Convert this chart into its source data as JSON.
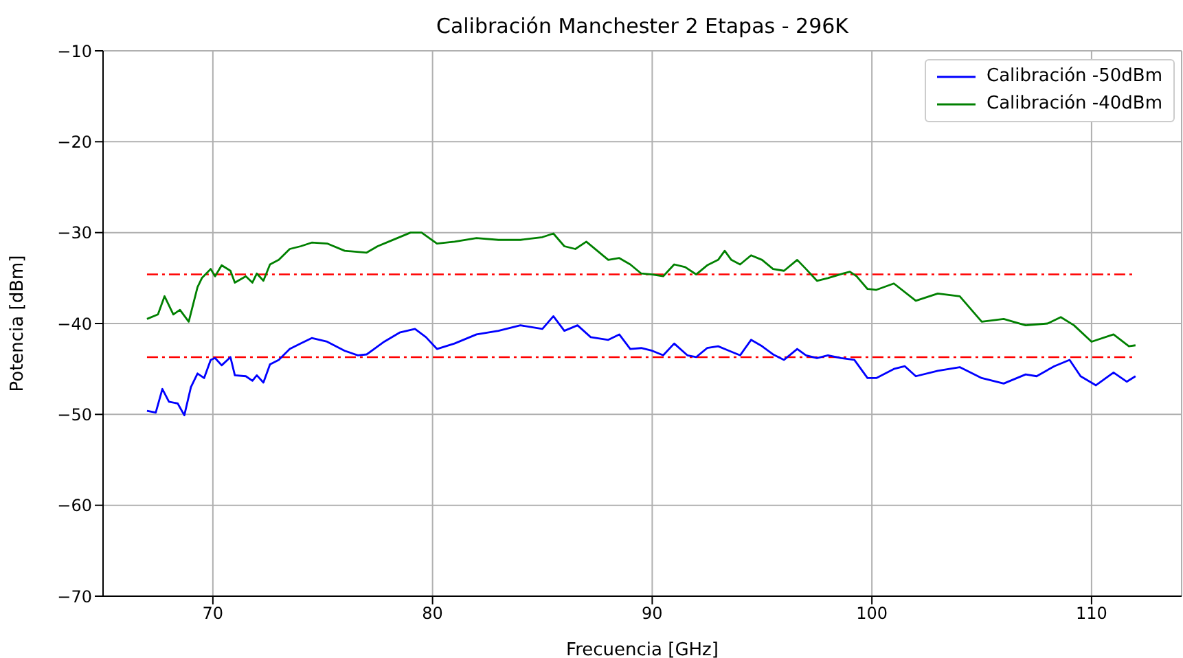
{
  "chart_data": {
    "type": "line",
    "title": "Calibración Manchester 2 Etapas - 296K",
    "xlabel": "Frecuencia [GHz]",
    "ylabel": "Potencia [dBm]",
    "xlim": [
      65,
      114.1
    ],
    "xticks": [
      70,
      80,
      90,
      100,
      110
    ],
    "ylim": [
      -70,
      -10
    ],
    "yticks": [
      -70,
      -60,
      -50,
      -40,
      -30,
      -20,
      -10
    ],
    "grid": true,
    "legend": "top right",
    "line_style": "solid",
    "marker": "none",
    "series": [
      {
        "name": "Calibración -50dBm",
        "color": "#0000ff",
        "x": [
          67.0,
          67.4,
          67.7,
          68.0,
          68.4,
          68.7,
          69.0,
          69.3,
          69.6,
          69.9,
          70.1,
          70.4,
          70.8,
          71.0,
          71.5,
          71.8,
          72.0,
          72.3,
          72.6,
          73.0,
          73.5,
          74.0,
          74.5,
          75.2,
          76.0,
          76.6,
          77.0,
          77.8,
          78.5,
          79.2,
          79.7,
          80.2,
          81.0,
          82.0,
          83.0,
          84.0,
          85.0,
          85.5,
          86.0,
          86.6,
          87.2,
          88.0,
          88.5,
          89.0,
          89.5,
          90.0,
          90.5,
          91.0,
          91.6,
          92.0,
          92.5,
          93.0,
          93.5,
          94.0,
          94.5,
          95.0,
          95.5,
          96.0,
          96.6,
          97.0,
          97.5,
          98.0,
          98.6,
          99.2,
          99.8,
          100.2,
          101.0,
          101.5,
          102.0,
          103.0,
          104.0,
          105.0,
          106.0,
          107.0,
          107.5,
          108.3,
          109.0,
          109.5,
          110.2,
          111.0,
          111.6,
          112.0
        ],
        "values": [
          -49.6,
          -49.8,
          -47.2,
          -48.6,
          -48.8,
          -50.1,
          -47,
          -45.5,
          -46,
          -44,
          -43.8,
          -44.6,
          -43.7,
          -45.7,
          -45.8,
          -46.3,
          -45.7,
          -46.5,
          -44.5,
          -44,
          -42.8,
          -42.2,
          -41.6,
          -42,
          -43,
          -43.5,
          -43.4,
          -42,
          -41,
          -40.6,
          -41.5,
          -42.8,
          -42.2,
          -41.2,
          -40.8,
          -40.2,
          -40.6,
          -39.2,
          -40.8,
          -40.2,
          -41.5,
          -41.8,
          -41.2,
          -42.8,
          -42.7,
          -43,
          -43.5,
          -42.2,
          -43.5,
          -43.7,
          -42.7,
          -42.5,
          -43,
          -43.5,
          -41.8,
          -42.5,
          -43.4,
          -44,
          -42.8,
          -43.5,
          -43.8,
          -43.5,
          -43.8,
          -44,
          -46,
          -46,
          -45,
          -44.7,
          -45.8,
          -45.2,
          -44.8,
          -46,
          -46.6,
          -45.6,
          -45.8,
          -44.7,
          -44,
          -45.8,
          -46.8,
          -45.4,
          -46.4,
          -45.8
        ]
      },
      {
        "name": "Calibración -40dBm",
        "color": "#008000",
        "x": [
          67.0,
          67.5,
          67.8,
          68.2,
          68.5,
          68.9,
          69.3,
          69.5,
          69.9,
          70.1,
          70.4,
          70.8,
          71.0,
          71.5,
          71.8,
          72.0,
          72.3,
          72.6,
          73.0,
          73.5,
          74.0,
          74.5,
          75.2,
          76.0,
          77.0,
          77.5,
          78.0,
          79.0,
          79.5,
          80.2,
          81.0,
          82.0,
          83.0,
          84.0,
          85.0,
          85.5,
          86.0,
          86.5,
          87.0,
          87.5,
          88.0,
          88.5,
          89.0,
          89.5,
          90.0,
          90.5,
          91.0,
          91.5,
          92.0,
          92.5,
          93.0,
          93.3,
          93.6,
          94.0,
          94.5,
          95.0,
          95.5,
          96.0,
          96.6,
          97.0,
          97.5,
          98.0,
          98.7,
          99.0,
          99.3,
          99.8,
          100.2,
          101.0,
          102.0,
          103.0,
          104.0,
          105.0,
          106.0,
          107.0,
          108.0,
          108.6,
          109.2,
          110.0,
          111.0,
          111.7,
          112.0
        ],
        "values": [
          -39.5,
          -39,
          -37,
          -39,
          -38.5,
          -39.8,
          -36,
          -35,
          -34,
          -34.8,
          -33.6,
          -34.2,
          -35.5,
          -34.8,
          -35.5,
          -34.5,
          -35.3,
          -33.5,
          -33,
          -31.8,
          -31.5,
          -31.1,
          -31.2,
          -32,
          -32.2,
          -31.5,
          -31,
          -30,
          -30,
          -31.2,
          -31,
          -30.6,
          -30.8,
          -30.8,
          -30.5,
          -30.1,
          -31.5,
          -31.8,
          -31,
          -32,
          -33,
          -32.8,
          -33.5,
          -34.5,
          -34.6,
          -34.8,
          -33.5,
          -33.8,
          -34.6,
          -33.6,
          -33,
          -32,
          -33,
          -33.5,
          -32.5,
          -33,
          -34,
          -34.2,
          -33,
          -34,
          -35.3,
          -35,
          -34.5,
          -34.3,
          -34.8,
          -36.2,
          -36.3,
          -35.6,
          -37.5,
          -36.7,
          -37,
          -39.8,
          -39.5,
          -40.2,
          -40,
          -39.3,
          -40.2,
          -42,
          -41.2,
          -42.5,
          -42.4
        ]
      }
    ],
    "ref_lines": [
      {
        "axis": "y",
        "value": -34.6,
        "color": "#ff0000",
        "line_style": "dashed"
      },
      {
        "axis": "y",
        "value": -43.7,
        "color": "#ff0000",
        "line_style": "dashed"
      }
    ]
  }
}
